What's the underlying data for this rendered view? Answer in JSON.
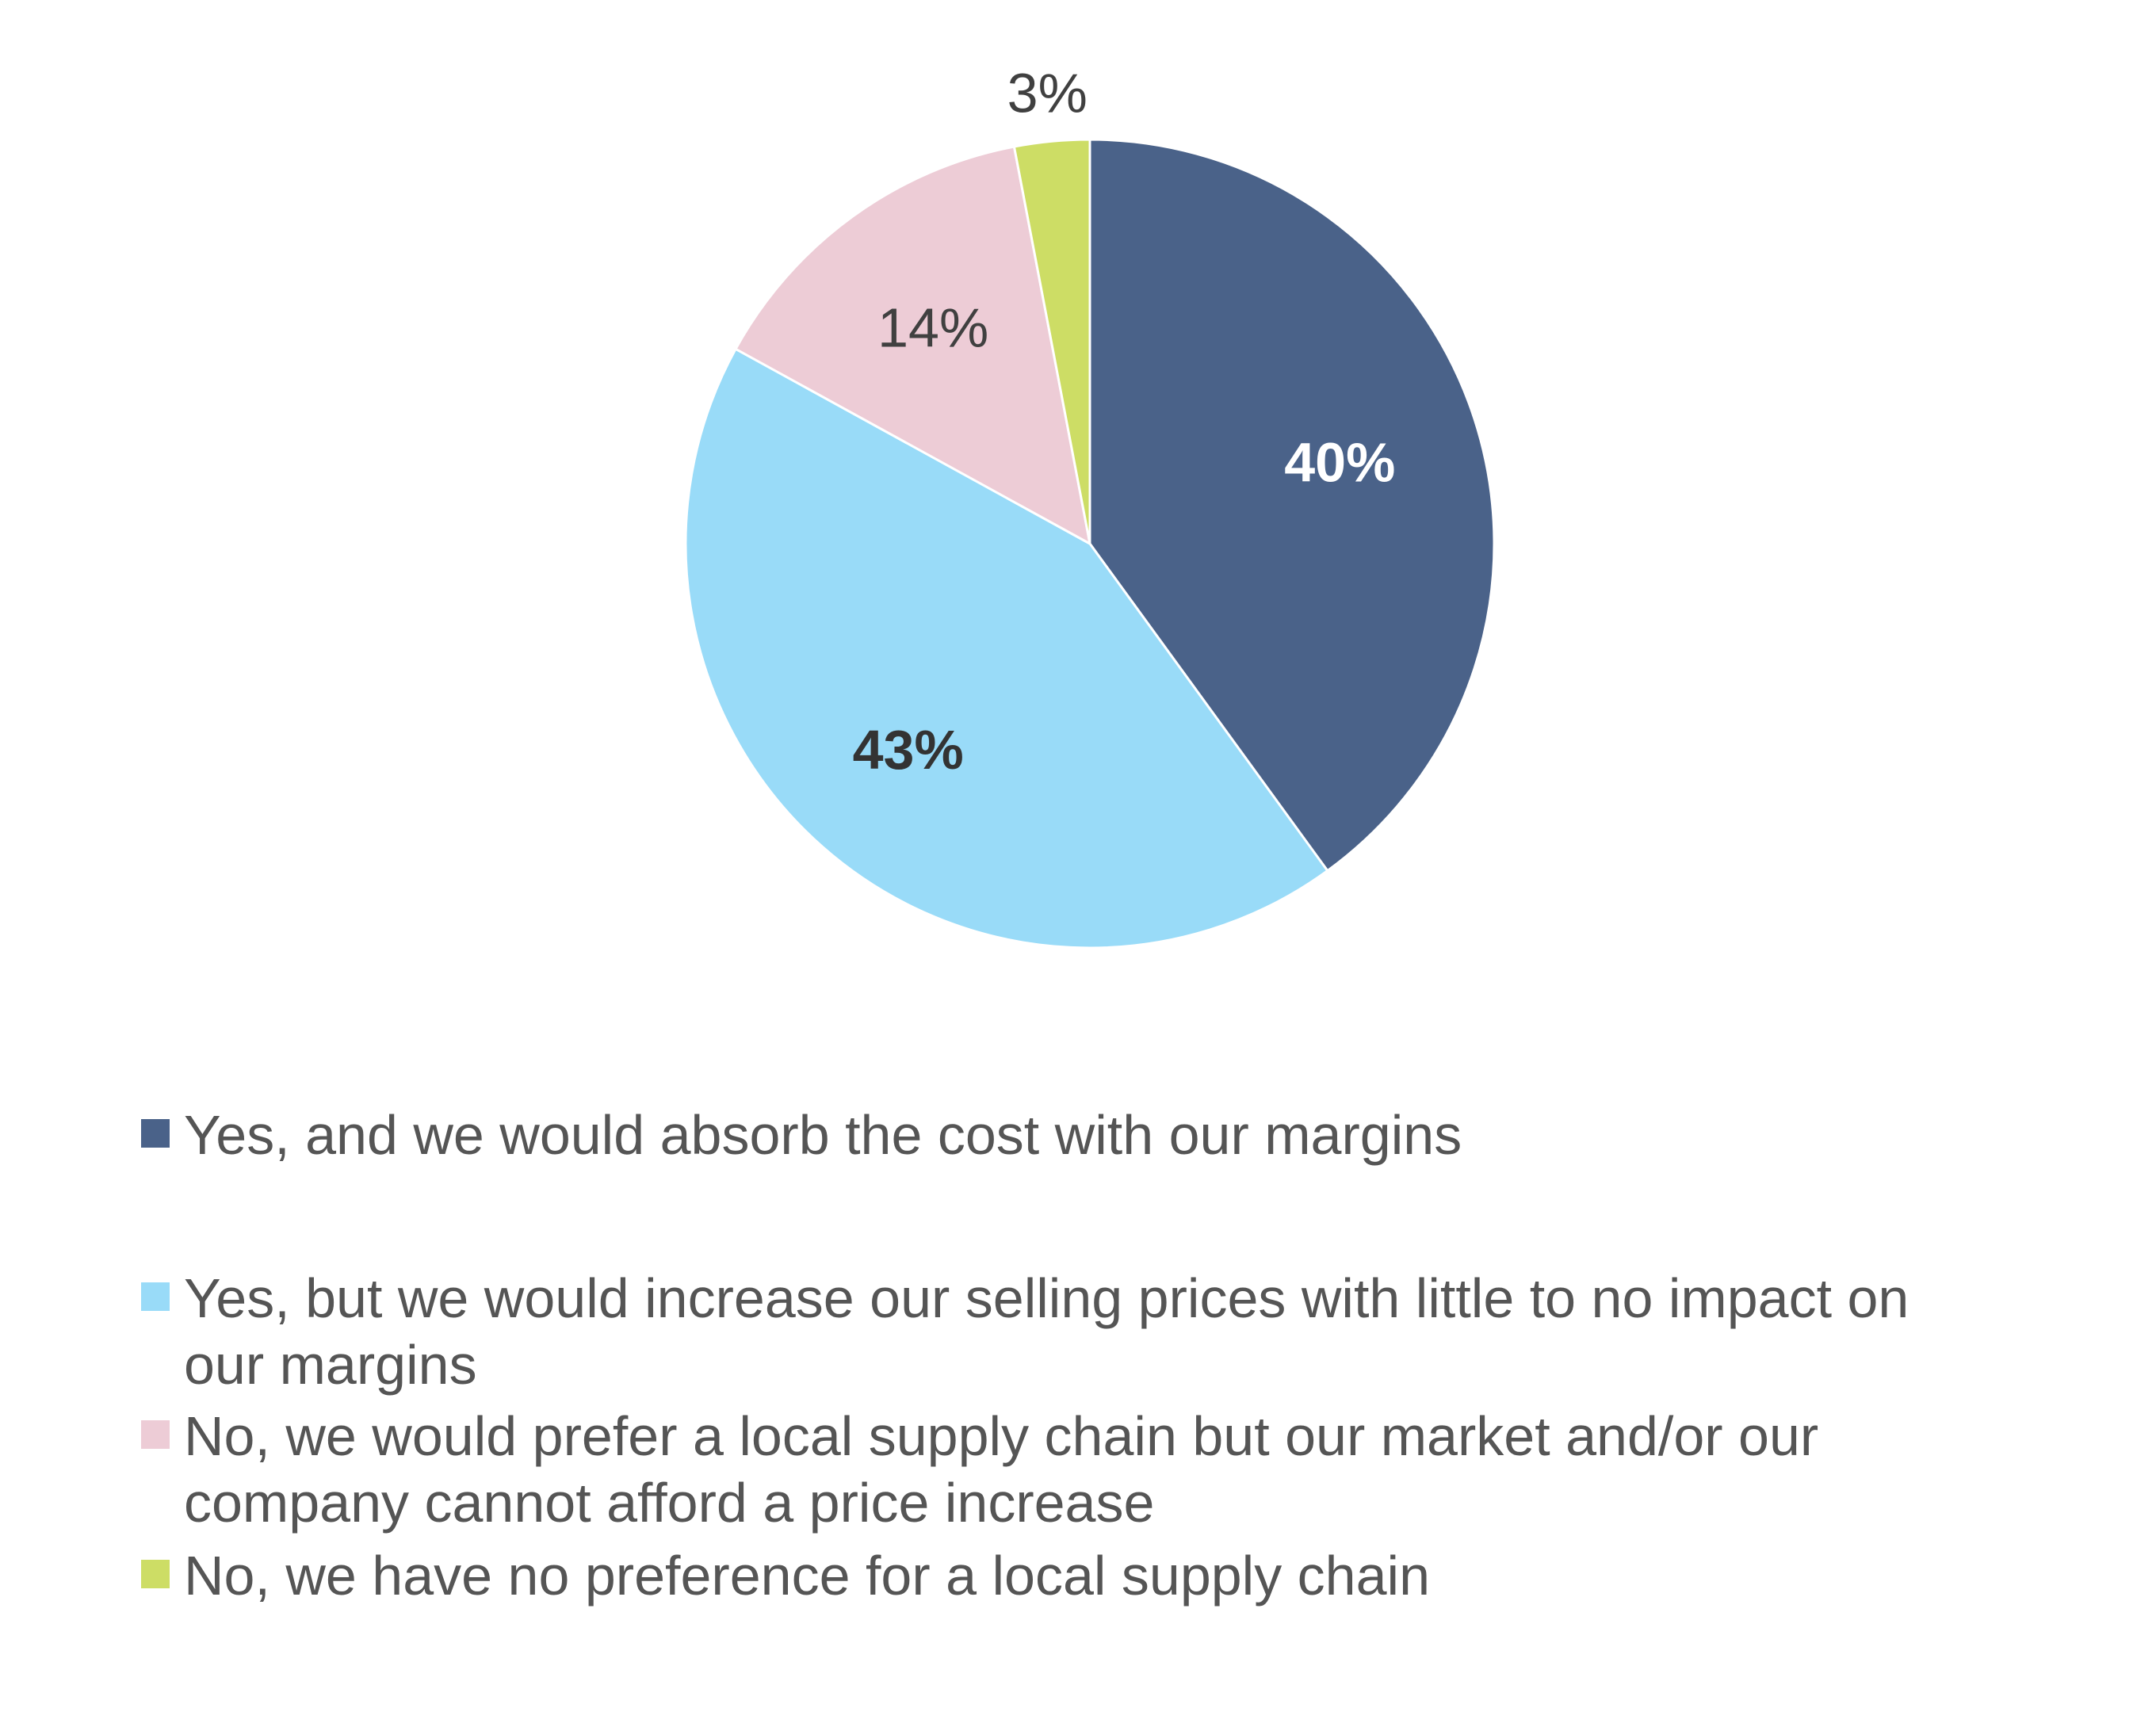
{
  "chart_data": {
    "type": "pie",
    "start_angle": "12 o'clock, clockwise",
    "slices": [
      {
        "name": "Yes, and we would absorb the cost with our margins",
        "value": 40,
        "label": "40%",
        "color": "#4A6289",
        "label_color": "#ffffff",
        "label_bold": true
      },
      {
        "name": "Yes, but we would increase our selling prices with little to no impact on our margins",
        "value": 43,
        "label": "43%",
        "color": "#99DBF8",
        "label_color": "#333333",
        "label_bold": true
      },
      {
        "name": "No, we would prefer a local supply chain but our market and/or our company cannot afford a price increase",
        "value": 14,
        "label": "14%",
        "color": "#EDCCD6",
        "label_color": "#404040",
        "label_bold": false
      },
      {
        "name": "No, we have no preference for a local supply chain",
        "value": 3,
        "label": "3%",
        "color": "#CDDD65",
        "label_color": "#404040",
        "label_bold": false
      }
    ],
    "legend": {
      "placement": "bottom",
      "items": [
        {
          "line1": "Yes, and we would absorb the cost with our margins",
          "line2": "",
          "color": "#4A6289"
        },
        {
          "line1": "Yes, but we would increase our selling prices with little to no impact on",
          "line2": "our margins",
          "color": "#99DBF8"
        },
        {
          "line1": "No, we would prefer a local supply chain but our market and/or our",
          "line2": "company cannot afford a price increase",
          "color": "#EDCCD6"
        },
        {
          "line1": "No, we have no preference for a local supply chain",
          "line2": "",
          "color": "#CDDD65"
        }
      ]
    }
  }
}
